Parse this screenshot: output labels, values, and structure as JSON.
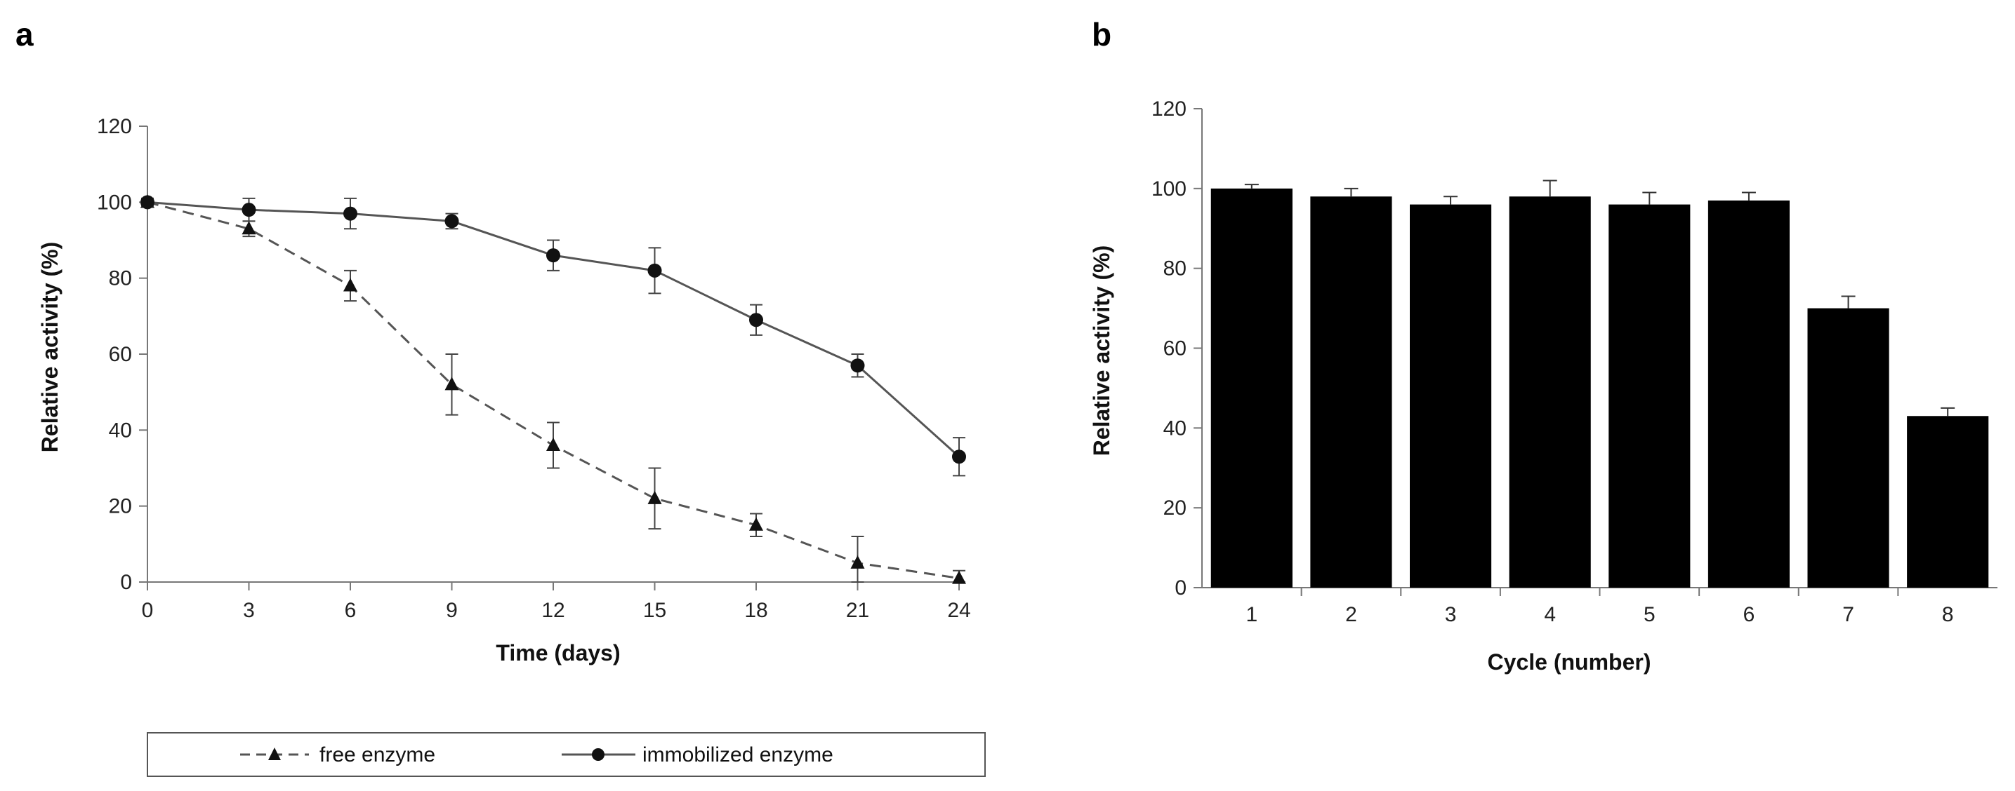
{
  "panels": {
    "a": "a",
    "b": "b"
  },
  "chart_data": [
    {
      "type": "line",
      "xlabel": "Time (days)",
      "ylabel": "Relative activity (%)",
      "x": [
        0,
        3,
        6,
        9,
        12,
        15,
        18,
        21,
        24
      ],
      "xticks": [
        "0",
        "3",
        "6",
        "9",
        "12",
        "15",
        "18",
        "21",
        "24"
      ],
      "yticks": [
        "0",
        "20",
        "40",
        "60",
        "80",
        "100",
        "120"
      ],
      "xlim": [
        0,
        24
      ],
      "ylim": [
        0,
        120
      ],
      "series": [
        {
          "name": "free enzyme",
          "marker": "triangle",
          "line": "dashed",
          "values": [
            100,
            93,
            78,
            52,
            36,
            22,
            15,
            5,
            1
          ],
          "errors": [
            1,
            2,
            4,
            8,
            6,
            8,
            3,
            7,
            2
          ]
        },
        {
          "name": "immobilized enzyme",
          "marker": "circle",
          "line": "solid",
          "values": [
            100,
            98,
            97,
            95,
            86,
            82,
            69,
            57,
            33
          ],
          "errors": [
            1,
            3,
            4,
            2,
            4,
            6,
            4,
            3,
            5
          ]
        }
      ],
      "legend": "bottom"
    },
    {
      "type": "bar",
      "xlabel": "Cycle (number)",
      "ylabel": "Relative activity (%)",
      "categories": [
        "1",
        "2",
        "3",
        "4",
        "5",
        "6",
        "7",
        "8"
      ],
      "values": [
        100,
        98,
        96,
        98,
        96,
        97,
        70,
        43
      ],
      "errors": [
        1,
        2,
        2,
        4,
        3,
        2,
        3,
        2
      ],
      "yticks": [
        "0",
        "20",
        "40",
        "60",
        "80",
        "100",
        "120"
      ],
      "ylim": [
        0,
        120
      ],
      "bar_color": "#000000"
    }
  ]
}
